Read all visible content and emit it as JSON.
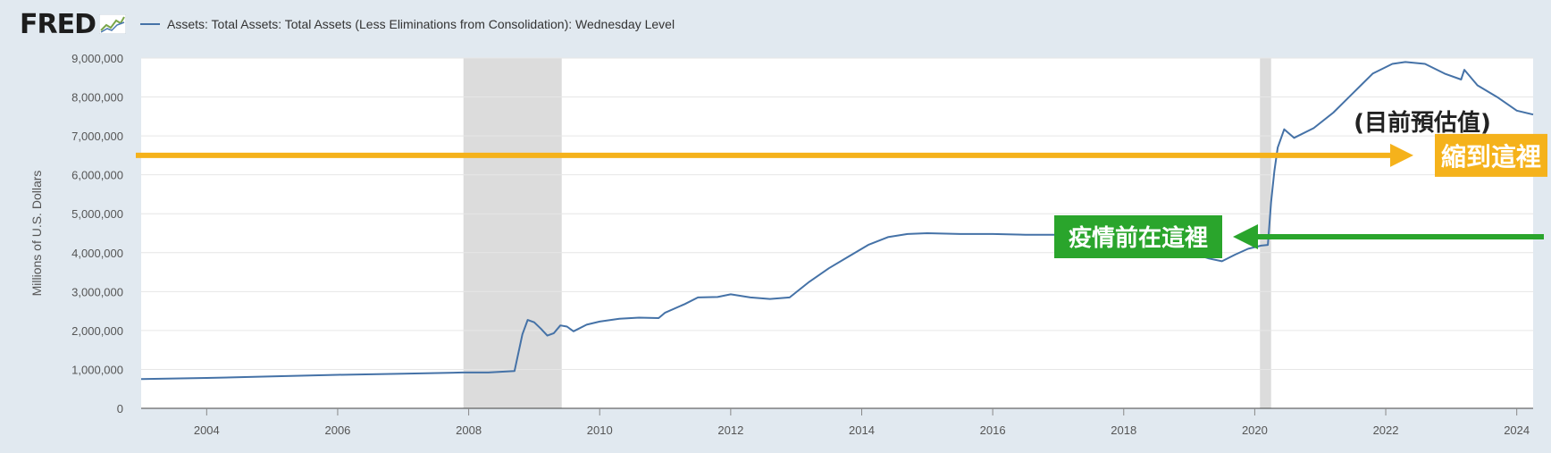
{
  "header": {
    "logo": "FRED",
    "series_title": "Assets: Total Assets: Total Assets (Less Eliminations from Consolidation): Wednesday Level"
  },
  "colors": {
    "page_bg": "#e1e9f0",
    "plot_bg": "#ffffff",
    "line": "#4572a7",
    "recession": "#dcdcdc",
    "arrow_orange": "#f5b21b",
    "arrow_green": "#2aa52c"
  },
  "chart_data": {
    "type": "line",
    "ylabel": "Millions of U.S. Dollars",
    "xlabel": "",
    "xlim": [
      2003.0,
      2024.25
    ],
    "ylim": [
      0,
      9000000
    ],
    "grid": true,
    "y_ticks": [
      {
        "value": 0,
        "label": "0"
      },
      {
        "value": 1000000,
        "label": "1,000,000"
      },
      {
        "value": 2000000,
        "label": "2,000,000"
      },
      {
        "value": 3000000,
        "label": "3,000,000"
      },
      {
        "value": 4000000,
        "label": "4,000,000"
      },
      {
        "value": 5000000,
        "label": "5,000,000"
      },
      {
        "value": 6000000,
        "label": "6,000,000"
      },
      {
        "value": 7000000,
        "label": "7,000,000"
      },
      {
        "value": 8000000,
        "label": "8,000,000"
      },
      {
        "value": 9000000,
        "label": "9,000,000"
      }
    ],
    "x_ticks": [
      {
        "value": 2004,
        "label": "2004"
      },
      {
        "value": 2006,
        "label": "2006"
      },
      {
        "value": 2008,
        "label": "2008"
      },
      {
        "value": 2010,
        "label": "2010"
      },
      {
        "value": 2012,
        "label": "2012"
      },
      {
        "value": 2014,
        "label": "2014"
      },
      {
        "value": 2016,
        "label": "2016"
      },
      {
        "value": 2018,
        "label": "2018"
      },
      {
        "value": 2020,
        "label": "2020"
      },
      {
        "value": 2022,
        "label": "2022"
      },
      {
        "value": 2024,
        "label": "2024"
      }
    ],
    "recessions": [
      [
        2007.92,
        2009.42
      ],
      [
        2020.08,
        2020.25
      ]
    ],
    "series": [
      {
        "x": [
          2003.0,
          2004.0,
          2005.0,
          2006.0,
          2007.0,
          2007.9,
          2008.3,
          2008.7,
          2008.82,
          2008.9,
          2009.0,
          2009.1,
          2009.2,
          2009.3,
          2009.4,
          2009.5,
          2009.6,
          2009.8,
          2010.0,
          2010.3,
          2010.6,
          2010.9,
          2011.0,
          2011.3,
          2011.5,
          2011.8,
          2012.0,
          2012.3,
          2012.6,
          2012.9,
          2013.2,
          2013.5,
          2013.8,
          2014.1,
          2014.4,
          2014.7,
          2015.0,
          2015.5,
          2016.0,
          2016.5,
          2017.0,
          2017.5,
          2017.9,
          2018.3,
          2018.7,
          2019.0,
          2019.3,
          2019.5,
          2019.7,
          2019.9,
          2020.1,
          2020.2,
          2020.25,
          2020.3,
          2020.35,
          2020.45,
          2020.6,
          2020.9,
          2021.2,
          2021.5,
          2021.8,
          2022.1,
          2022.3,
          2022.6,
          2022.9,
          2023.15,
          2023.2,
          2023.4,
          2023.7,
          2024.0,
          2024.25
        ],
        "values": [
          750000,
          780000,
          820000,
          860000,
          890000,
          920000,
          920000,
          960000,
          1900000,
          2270000,
          2210000,
          2050000,
          1870000,
          1930000,
          2130000,
          2100000,
          1980000,
          2150000,
          2230000,
          2300000,
          2330000,
          2320000,
          2460000,
          2680000,
          2850000,
          2860000,
          2930000,
          2850000,
          2810000,
          2850000,
          3250000,
          3600000,
          3900000,
          4200000,
          4400000,
          4480000,
          4500000,
          4480000,
          4480000,
          4460000,
          4460000,
          4450000,
          4420000,
          4300000,
          4150000,
          4010000,
          3850000,
          3780000,
          3950000,
          4100000,
          4180000,
          4200000,
          5300000,
          6100000,
          6700000,
          7170000,
          6950000,
          7200000,
          7600000,
          8100000,
          8600000,
          8850000,
          8900000,
          8850000,
          8600000,
          8450000,
          8700000,
          8300000,
          8000000,
          7650000,
          7550000
        ]
      }
    ],
    "annotations": [
      {
        "text": "(目前預估值)",
        "color": "#222222"
      },
      {
        "text": "縮到這裡",
        "color": "#f5b21b",
        "y": 6500000
      },
      {
        "text": "疫情前在這裡",
        "color": "#2aa52c",
        "y": 4200000
      }
    ]
  }
}
